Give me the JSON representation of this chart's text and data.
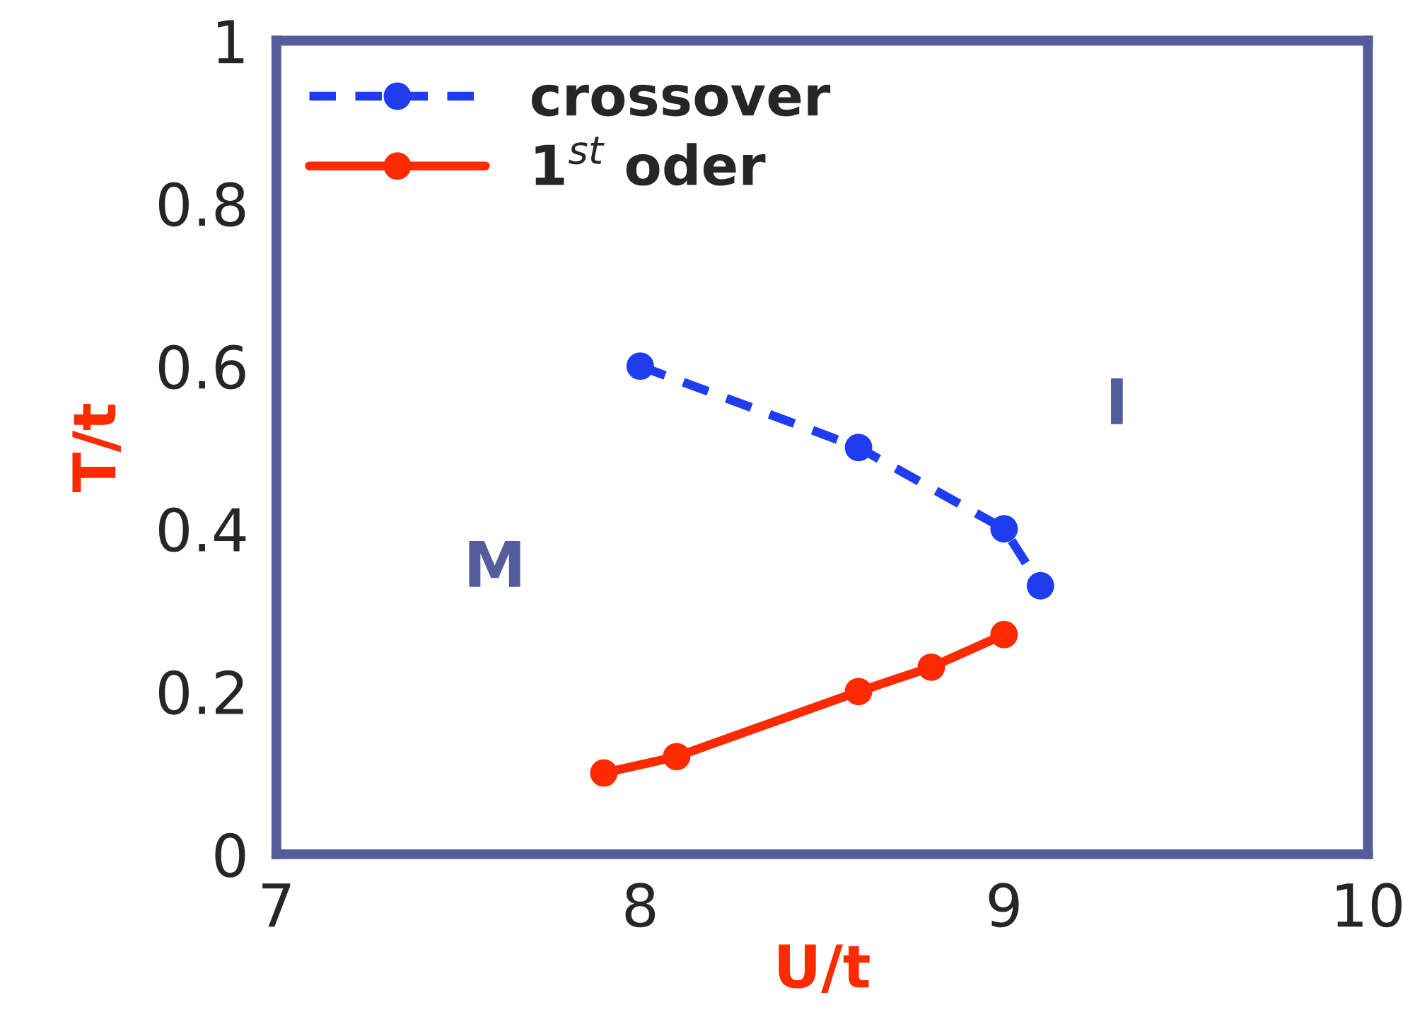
{
  "chart_data": {
    "type": "line",
    "xlabel": "U/t",
    "ylabel": "T/t",
    "xlim": [
      7,
      10
    ],
    "ylim": [
      0,
      1
    ],
    "xticks": [
      7,
      8,
      9,
      10
    ],
    "yticks": [
      0,
      0.2,
      0.4,
      0.6,
      0.8,
      1
    ],
    "grid": false,
    "legend": "top left",
    "marker": "circle",
    "series": [
      {
        "name": "crossover",
        "color": "#1f3cf0",
        "line_style": "dashed",
        "x": [
          8,
          8.6,
          9,
          9.1
        ],
        "values": [
          0.6,
          0.5,
          0.4,
          0.33
        ]
      },
      {
        "name": "1$^{st}$ oder",
        "color": "#ff2a00",
        "line_style": "solid",
        "x": [
          7.9,
          8.1,
          8.6,
          8.8,
          9
        ],
        "values": [
          0.1,
          0.12,
          0.2,
          0.23,
          0.27
        ]
      }
    ],
    "annotations": [
      "M",
      "I"
    ]
  }
}
